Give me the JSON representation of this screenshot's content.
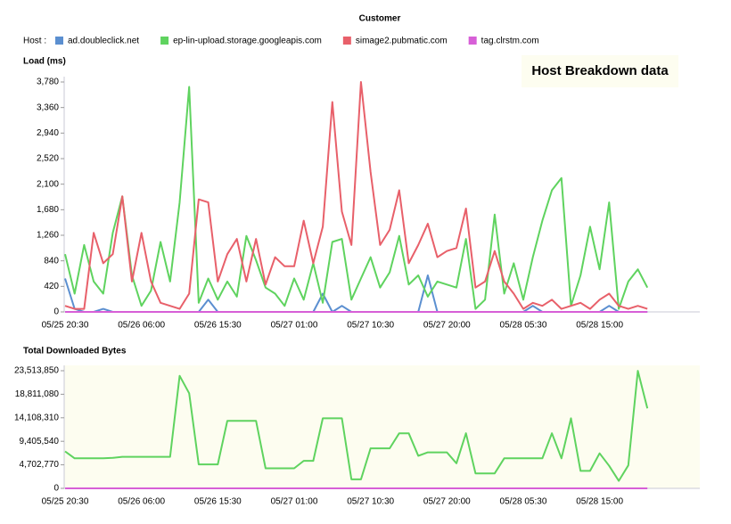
{
  "title": "Customer",
  "legend_label": "Host :",
  "chart_data": [
    {
      "type": "line",
      "title": "Load (ms)",
      "annotation": "Host Breakdown data",
      "categories": [
        "05/25 20:30",
        null,
        null,
        null,
        null,
        null,
        null,
        null,
        "05/26 06:00",
        null,
        null,
        null,
        null,
        null,
        null,
        null,
        "05/26 15:30",
        null,
        null,
        null,
        null,
        null,
        null,
        null,
        "05/27 01:00",
        null,
        null,
        null,
        null,
        null,
        null,
        null,
        "05/27 10:30",
        null,
        null,
        null,
        null,
        null,
        null,
        null,
        "05/27 20:00",
        null,
        null,
        null,
        null,
        null,
        null,
        null,
        "05/28 05:30",
        null,
        null,
        null,
        null,
        null,
        null,
        null,
        "05/28 15:00",
        null,
        null,
        null,
        null,
        null
      ],
      "series": [
        {
          "name": "ad.doubleclick.net",
          "color": "#5b8fd0",
          "values": [
            550,
            50,
            0,
            0,
            50,
            0,
            0,
            0,
            0,
            0,
            0,
            0,
            0,
            0,
            0,
            200,
            0,
            0,
            0,
            0,
            0,
            0,
            0,
            0,
            0,
            0,
            0,
            300,
            0,
            100,
            0,
            0,
            0,
            0,
            0,
            0,
            0,
            0,
            600,
            0,
            0,
            0,
            0,
            0,
            0,
            0,
            0,
            0,
            0,
            100,
            0,
            0,
            0,
            0,
            0,
            0,
            0,
            100,
            0,
            0,
            0,
            0
          ]
        },
        {
          "name": "ep-lin-upload.storage.googleapis.com",
          "color": "#5fd35f",
          "values": [
            950,
            300,
            1100,
            500,
            300,
            1300,
            1900,
            600,
            100,
            350,
            1150,
            500,
            1800,
            3700,
            150,
            550,
            200,
            500,
            250,
            1250,
            850,
            400,
            300,
            100,
            550,
            200,
            800,
            150,
            1150,
            1200,
            200,
            550,
            900,
            400,
            650,
            1250,
            450,
            600,
            250,
            500,
            450,
            400,
            1200,
            50,
            200,
            1600,
            300,
            800,
            200,
            900,
            1500,
            2000,
            2200,
            100,
            600,
            1400,
            700,
            1800,
            50,
            500,
            700,
            400
          ]
        },
        {
          "name": "simage2.pubmatic.com",
          "color": "#e8606a",
          "values": [
            100,
            50,
            50,
            1300,
            800,
            950,
            1900,
            500,
            1300,
            500,
            150,
            100,
            50,
            300,
            1850,
            1800,
            500,
            950,
            1200,
            500,
            1200,
            450,
            900,
            750,
            750,
            1500,
            800,
            1400,
            3450,
            1650,
            1100,
            3780,
            2300,
            1100,
            1350,
            2000,
            800,
            1100,
            1450,
            900,
            1000,
            1050,
            1700,
            400,
            500,
            1000,
            500,
            300,
            50,
            150,
            100,
            200,
            50,
            100,
            150,
            50,
            200,
            300,
            100,
            50,
            100,
            50
          ]
        },
        {
          "name": "tag.clrstm.com",
          "color": "#d75fd7",
          "values": [
            0,
            0,
            0,
            0,
            0,
            0,
            0,
            0,
            0,
            0,
            0,
            0,
            0,
            0,
            0,
            0,
            0,
            0,
            0,
            0,
            0,
            0,
            0,
            0,
            0,
            0,
            0,
            0,
            0,
            0,
            0,
            0,
            0,
            0,
            0,
            0,
            0,
            0,
            0,
            0,
            0,
            0,
            0,
            0,
            0,
            0,
            0,
            0,
            0,
            0,
            0,
            0,
            0,
            0,
            0,
            0,
            0,
            0,
            0,
            0,
            0,
            0
          ]
        }
      ],
      "ylim": [
        0,
        3780
      ],
      "yticks": [
        0,
        420,
        840,
        {
          "value": 1260,
          "label": "1,260"
        },
        {
          "value": 1680,
          "label": "1,680"
        },
        {
          "value": 2100,
          "label": "2,100"
        },
        {
          "value": 2520,
          "label": "2,520"
        },
        {
          "value": 2940,
          "label": "2,940"
        },
        {
          "value": 3360,
          "label": "3,360"
        },
        {
          "value": 3780,
          "label": "3,780"
        }
      ],
      "grid": false,
      "legend": "top-left"
    },
    {
      "type": "line",
      "title": "Total Downloaded Bytes",
      "categories": [
        "05/25 20:30",
        null,
        null,
        null,
        null,
        null,
        null,
        null,
        "05/26 06:00",
        null,
        null,
        null,
        null,
        null,
        null,
        null,
        "05/26 15:30",
        null,
        null,
        null,
        null,
        null,
        null,
        null,
        "05/27 01:00",
        null,
        null,
        null,
        null,
        null,
        null,
        null,
        "05/27 10:30",
        null,
        null,
        null,
        null,
        null,
        null,
        null,
        "05/27 20:00",
        null,
        null,
        null,
        null,
        null,
        null,
        null,
        "05/28 05:30",
        null,
        null,
        null,
        null,
        null,
        null,
        null,
        "05/28 15:00",
        null,
        null,
        null,
        null,
        null
      ],
      "series": [
        {
          "color": "#5fd35f",
          "values": [
            7400000,
            6000000,
            6000000,
            6000000,
            6000000,
            6100000,
            6300000,
            6300000,
            6300000,
            6300000,
            6300000,
            6300000,
            22500000,
            19000000,
            4800000,
            4800000,
            4800000,
            13500000,
            13500000,
            13500000,
            13500000,
            4000000,
            4000000,
            4000000,
            4000000,
            5500000,
            5500000,
            14000000,
            14000000,
            14000000,
            1800000,
            1800000,
            8000000,
            8000000,
            8000000,
            11000000,
            11000000,
            6500000,
            7200000,
            7200000,
            7200000,
            5000000,
            11000000,
            3000000,
            3000000,
            3000000,
            6000000,
            6000000,
            6000000,
            6000000,
            6000000,
            11000000,
            6000000,
            14000000,
            3500000,
            3500000,
            7000000,
            4500000,
            1500000,
            4600000,
            23500000,
            16000000
          ]
        },
        {
          "color": "#d75fd7",
          "values": [
            0,
            0,
            0,
            0,
            0,
            0,
            0,
            0,
            0,
            0,
            0,
            0,
            0,
            0,
            0,
            0,
            0,
            0,
            0,
            0,
            0,
            0,
            0,
            0,
            0,
            0,
            0,
            0,
            0,
            0,
            0,
            0,
            0,
            0,
            0,
            0,
            0,
            0,
            0,
            0,
            0,
            0,
            0,
            0,
            0,
            0,
            0,
            0,
            0,
            0,
            0,
            0,
            0,
            0,
            0,
            0,
            0,
            0,
            0,
            0,
            0,
            0
          ]
        }
      ],
      "ylim": [
        0,
        23513850
      ],
      "yticks": [
        0,
        {
          "value": 4702770,
          "label": "4,702,770"
        },
        {
          "value": 9405540,
          "label": "9,405,540"
        },
        {
          "value": 14108310,
          "label": "14,108,310"
        },
        {
          "value": 18811080,
          "label": "18,811,080"
        },
        {
          "value": 23513850,
          "label": "23,513,850"
        }
      ],
      "grid": false,
      "background": "#fdfdf0"
    }
  ]
}
